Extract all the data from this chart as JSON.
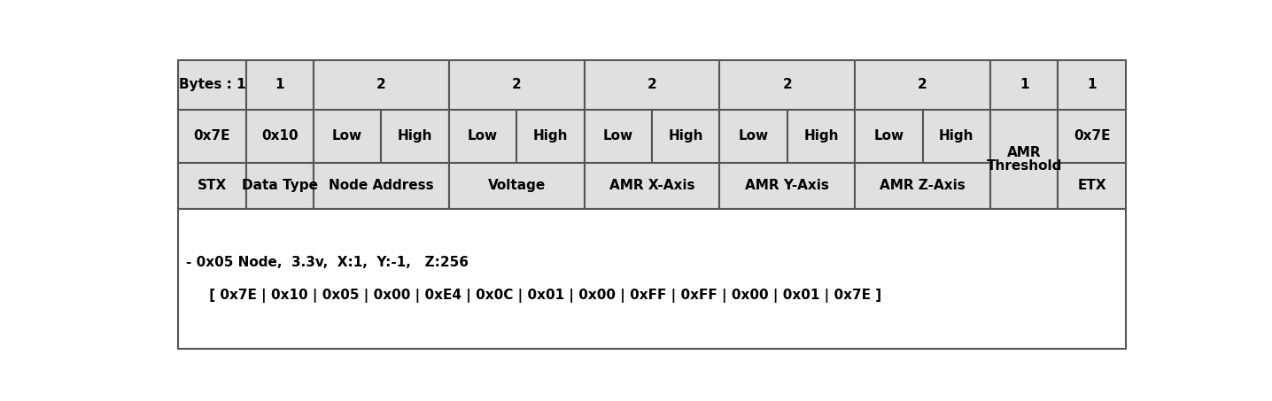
{
  "bg_color": "#e0e0e0",
  "white_bg": "#ffffff",
  "border_color": "#555555",
  "text_color": "#000000",
  "fig_width": 14.36,
  "fig_height": 4.53,
  "row1_label": "Bytes : 1",
  "row1_values": [
    "1",
    "2",
    "2",
    "2",
    "2",
    "2",
    "1",
    "1"
  ],
  "row2_col0": "0x7E",
  "row2_col1": "0x10",
  "row2_lowhigh": [
    "Low",
    "High"
  ],
  "row2_col8": "0x7E",
  "amr_threshold_line1": "AMR",
  "amr_threshold_line2": "Threshold",
  "row3_labels": [
    "STX",
    "Data Type",
    "Node Address",
    "Voltage",
    "AMR X-Axis",
    "AMR Y-Axis",
    "AMR Z-Axis",
    "ETX"
  ],
  "note_line1": "- 0x05 Node,  3.3v,  X:1,  Y:-1,   Z:256",
  "note_line2": "     [ 0x7E | 0x10 | 0x05 | 0x00 | 0xE4 | 0x0C | 0x01 | 0x00 | 0xFF | 0xFF | 0x00 | 0x01 | 0x7E ]",
  "col_bytes": [
    1,
    1,
    2,
    2,
    2,
    2,
    2,
    1,
    1
  ],
  "font_size": 11,
  "font_size_note": 11
}
